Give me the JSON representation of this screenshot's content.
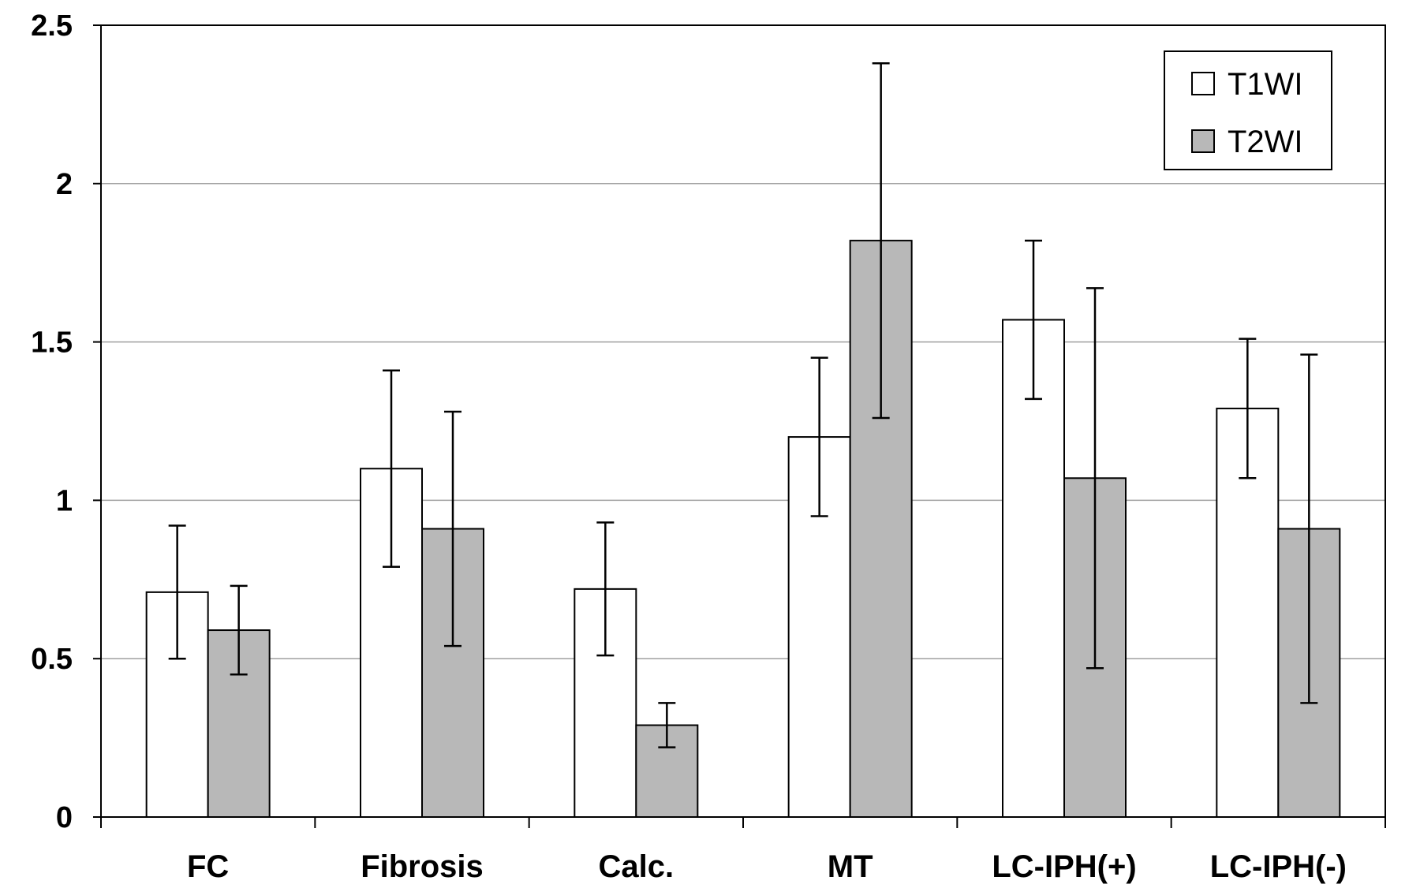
{
  "chart_data": {
    "type": "bar",
    "title": "",
    "xlabel": "",
    "ylabel": "",
    "ylim": [
      0,
      2.5
    ],
    "yticks": [
      "0",
      "0.5",
      "1",
      "1.5",
      "2",
      "2.5"
    ],
    "grid": true,
    "legend_position": "top-right",
    "categories": [
      "FC",
      "Fibrosis",
      "Calc.",
      "MT",
      "LC-IPH(+)",
      "LC-IPH(-)"
    ],
    "series": [
      {
        "name": "T1WI",
        "color": "#ffffff",
        "values": [
          0.71,
          1.1,
          0.72,
          1.2,
          1.57,
          1.29
        ],
        "error": [
          0.21,
          0.31,
          0.21,
          0.25,
          0.25,
          0.22
        ]
      },
      {
        "name": "T2WI",
        "color": "#b8b8b8",
        "values": [
          0.59,
          0.91,
          0.29,
          1.82,
          1.07,
          0.91
        ],
        "error": [
          0.14,
          0.37,
          0.07,
          0.56,
          0.6,
          0.55
        ]
      }
    ]
  }
}
